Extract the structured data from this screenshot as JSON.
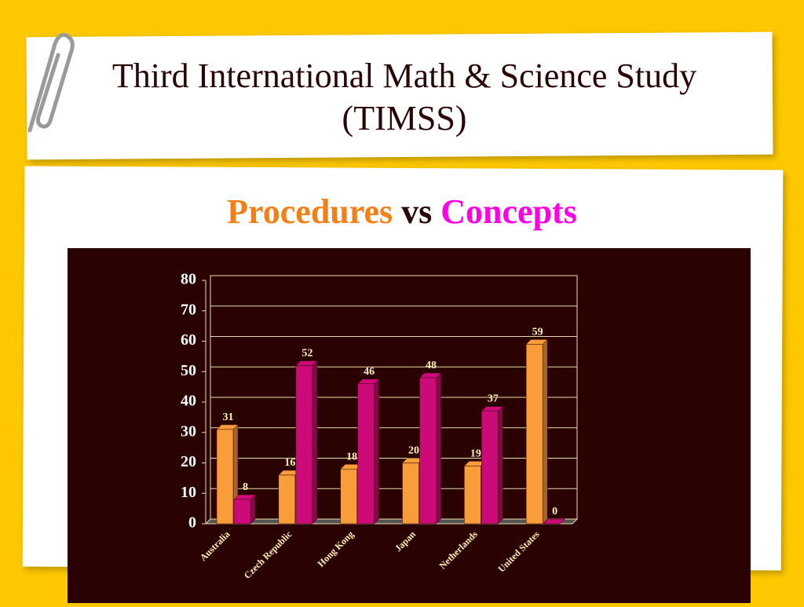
{
  "title": "Third International Math & Science Study (TIMSS)",
  "chart_data": {
    "type": "bar3d",
    "legend_separator": "vs",
    "categories": [
      "Australia",
      "Czech Republic",
      "Hong Kong",
      "Japan",
      "Netherlands",
      "United States"
    ],
    "series": [
      {
        "name": "Procedures",
        "color": "#f99d3a",
        "values": [
          31,
          16,
          18,
          20,
          19,
          59
        ]
      },
      {
        "name": "Concepts",
        "color": "#cc0a78",
        "values": [
          8,
          52,
          46,
          48,
          37,
          0
        ]
      }
    ],
    "ylim": [
      0,
      80
    ],
    "yticks": [
      0,
      10,
      20,
      30,
      40,
      50,
      60,
      70,
      80
    ],
    "grid": true
  }
}
